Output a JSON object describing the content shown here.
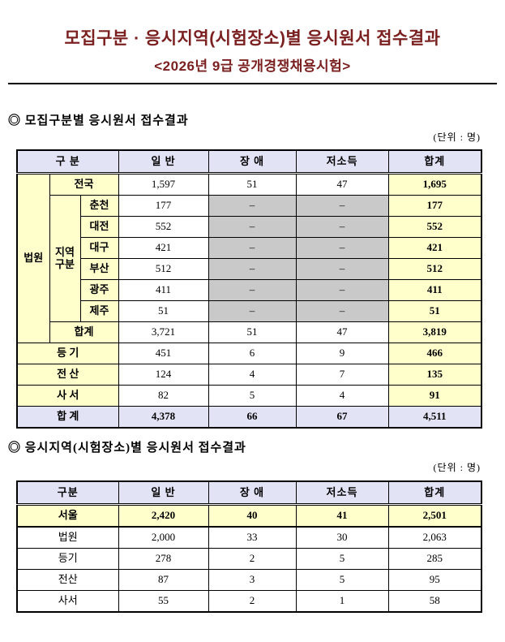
{
  "title": {
    "main": "모집구분 · 응시지역(시험장소)별 응시원서 접수결과",
    "sub": "<2026년 9급 공개경쟁채용시험>"
  },
  "colors": {
    "title_color": "#7B2020",
    "header_bg": "#E3E3F6",
    "yellow_bg": "#FFFFCC",
    "gray_bg": "#C9C9C9",
    "total_bg": "#E3E3F6",
    "border_color": "#000000"
  },
  "sections": [
    {
      "heading": "◎ 모집구분별 응시원서 접수결과",
      "unit_label": "(단위 : 명)",
      "table": {
        "headers": [
          {
            "t": "구 분",
            "cs": 3
          },
          {
            "t": "일 반"
          },
          {
            "t": "장 애"
          },
          {
            "t": "저소득"
          },
          {
            "t": "합계"
          }
        ],
        "rows": [
          {
            "cells": [
              {
                "t": "법원",
                "rs": 8,
                "c": "label-yellow",
                "n": "row-label-court"
              },
              {
                "t": "전국",
                "cs": 2,
                "c": "label-yellow",
                "n": "row-label-nationwide"
              },
              {
                "t": "1,597"
              },
              {
                "t": "51"
              },
              {
                "t": "47"
              },
              {
                "t": "1,695",
                "c": "sum-yellow",
                "n": "sum-cell"
              }
            ]
          },
          {
            "cells": [
              {
                "t": "지역\n구분",
                "rs": 6,
                "c": "label-yellow prewrap",
                "n": "row-label-region-group"
              },
              {
                "t": "춘천",
                "c": "label-yellow",
                "n": "row-label-chuncheon"
              },
              {
                "t": "177"
              },
              {
                "t": "–",
                "c": "dash-gray"
              },
              {
                "t": "–",
                "c": "dash-gray"
              },
              {
                "t": "177",
                "c": "sum-yellow",
                "n": "sum-cell"
              }
            ]
          },
          {
            "cells": [
              {
                "t": "대전",
                "c": "label-yellow",
                "n": "row-label-daejeon"
              },
              {
                "t": "552"
              },
              {
                "t": "–",
                "c": "dash-gray"
              },
              {
                "t": "–",
                "c": "dash-gray"
              },
              {
                "t": "552",
                "c": "sum-yellow",
                "n": "sum-cell"
              }
            ]
          },
          {
            "cells": [
              {
                "t": "대구",
                "c": "label-yellow",
                "n": "row-label-daegu"
              },
              {
                "t": "421"
              },
              {
                "t": "–",
                "c": "dash-gray"
              },
              {
                "t": "–",
                "c": "dash-gray"
              },
              {
                "t": "421",
                "c": "sum-yellow",
                "n": "sum-cell"
              }
            ]
          },
          {
            "cells": [
              {
                "t": "부산",
                "c": "label-yellow",
                "n": "row-label-busan"
              },
              {
                "t": "512"
              },
              {
                "t": "–",
                "c": "dash-gray"
              },
              {
                "t": "–",
                "c": "dash-gray"
              },
              {
                "t": "512",
                "c": "sum-yellow",
                "n": "sum-cell"
              }
            ]
          },
          {
            "cells": [
              {
                "t": "광주",
                "c": "label-yellow",
                "n": "row-label-gwangju"
              },
              {
                "t": "411"
              },
              {
                "t": "–",
                "c": "dash-gray"
              },
              {
                "t": "–",
                "c": "dash-gray"
              },
              {
                "t": "411",
                "c": "sum-yellow",
                "n": "sum-cell"
              }
            ]
          },
          {
            "cells": [
              {
                "t": "제주",
                "c": "label-yellow",
                "n": "row-label-jeju"
              },
              {
                "t": "51"
              },
              {
                "t": "–",
                "c": "dash-gray"
              },
              {
                "t": "–",
                "c": "dash-gray"
              },
              {
                "t": "51",
                "c": "sum-yellow",
                "n": "sum-cell"
              }
            ]
          },
          {
            "cells": [
              {
                "t": "합계",
                "cs": 2,
                "c": "label-yellow",
                "n": "row-label-court-subtotal"
              },
              {
                "t": "3,721"
              },
              {
                "t": "51"
              },
              {
                "t": "47"
              },
              {
                "t": "3,819",
                "c": "sum-yellow",
                "n": "sum-cell"
              }
            ]
          },
          {
            "cells": [
              {
                "t": "등 기",
                "cs": 3,
                "c": "label-yellow",
                "n": "row-label-registry"
              },
              {
                "t": "451"
              },
              {
                "t": "6"
              },
              {
                "t": "9"
              },
              {
                "t": "466",
                "c": "sum-yellow",
                "n": "sum-cell"
              }
            ]
          },
          {
            "cells": [
              {
                "t": "전 산",
                "cs": 3,
                "c": "label-yellow",
                "n": "row-label-it"
              },
              {
                "t": "124"
              },
              {
                "t": "4"
              },
              {
                "t": "7"
              },
              {
                "t": "135",
                "c": "sum-yellow",
                "n": "sum-cell"
              }
            ]
          },
          {
            "cells": [
              {
                "t": "사 서",
                "cs": 3,
                "c": "label-yellow",
                "n": "row-label-librarian"
              },
              {
                "t": "82"
              },
              {
                "t": "5"
              },
              {
                "t": "4"
              },
              {
                "t": "91",
                "c": "sum-yellow",
                "n": "sum-cell"
              }
            ]
          },
          {
            "cells": [
              {
                "t": "합 계",
                "cs": 3,
                "c": "total-lav",
                "n": "row-label-grand-total"
              },
              {
                "t": "4,378",
                "c": "total-lav"
              },
              {
                "t": "66",
                "c": "total-lav"
              },
              {
                "t": "67",
                "c": "total-lav"
              },
              {
                "t": "4,511",
                "c": "total-lav",
                "n": "sum-cell"
              }
            ]
          }
        ]
      }
    },
    {
      "heading": "◎ 응시지역(시험장소)별 응시원서 접수결과",
      "unit_label": "(단위 : 명)",
      "table": {
        "headers": [
          {
            "t": "구분"
          },
          {
            "t": "일 반"
          },
          {
            "t": "장 애"
          },
          {
            "t": "저소득"
          },
          {
            "t": "합계"
          }
        ],
        "rows": [
          {
            "row_class": "emph-row",
            "cells": [
              {
                "t": "서울",
                "c": "sum-yellow",
                "n": "row-label-seoul"
              },
              {
                "t": "2,420",
                "c": "sum-yellow"
              },
              {
                "t": "40",
                "c": "sum-yellow"
              },
              {
                "t": "41",
                "c": "sum-yellow"
              },
              {
                "t": "2,501",
                "c": "sum-yellow",
                "n": "sum-cell"
              }
            ]
          },
          {
            "cells": [
              {
                "t": "법원",
                "n": "row-label-court"
              },
              {
                "t": "2,000"
              },
              {
                "t": "33"
              },
              {
                "t": "30"
              },
              {
                "t": "2,063",
                "n": "sum-cell"
              }
            ]
          },
          {
            "cells": [
              {
                "t": "등기",
                "n": "row-label-registry"
              },
              {
                "t": "278"
              },
              {
                "t": "2"
              },
              {
                "t": "5"
              },
              {
                "t": "285",
                "n": "sum-cell"
              }
            ]
          },
          {
            "cells": [
              {
                "t": "전산",
                "n": "row-label-it"
              },
              {
                "t": "87"
              },
              {
                "t": "3"
              },
              {
                "t": "5"
              },
              {
                "t": "95",
                "n": "sum-cell"
              }
            ]
          },
          {
            "cells": [
              {
                "t": "사서",
                "n": "row-label-librarian"
              },
              {
                "t": "55"
              },
              {
                "t": "2"
              },
              {
                "t": "1"
              },
              {
                "t": "58",
                "n": "sum-cell"
              }
            ]
          }
        ]
      }
    }
  ]
}
